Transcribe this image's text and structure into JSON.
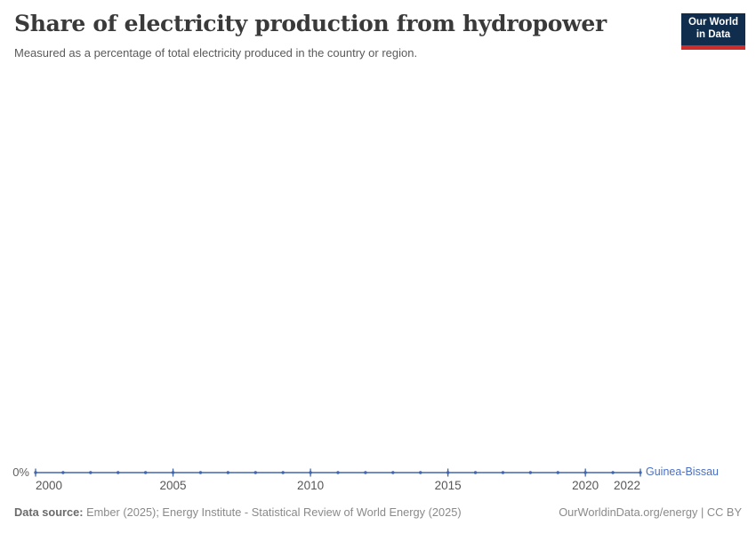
{
  "header": {
    "title": "Share of electricity production from hydropower",
    "subtitle": "Measured as a percentage of total electricity produced in the country or region.",
    "logo": {
      "line1": "Our World",
      "line2": "in Data",
      "bg_color": "#102D4E",
      "bar_color": "#CE2B2B"
    }
  },
  "chart_data": {
    "type": "line",
    "title": "Share of electricity production from hydropower",
    "subtitle": "Measured as a percentage of total electricity produced in the country or region.",
    "xlabel": "",
    "ylabel": "",
    "xlim": [
      2000,
      2022
    ],
    "ylim": [
      0,
      0
    ],
    "grid": false,
    "legend_position": "end-of-line",
    "x_ticks": [
      2000,
      2005,
      2010,
      2015,
      2020,
      2022
    ],
    "y_axis": {
      "zero_label": "0%",
      "tick_labels": [
        "0%"
      ]
    },
    "series": [
      {
        "name": "Guinea-Bissau",
        "color": "#4066AE",
        "label_color": "#4A70C4",
        "x": [
          2000,
          2001,
          2002,
          2003,
          2004,
          2005,
          2006,
          2007,
          2008,
          2009,
          2010,
          2011,
          2012,
          2013,
          2014,
          2015,
          2016,
          2017,
          2018,
          2019,
          2020,
          2021,
          2022
        ],
        "values": [
          0,
          0,
          0,
          0,
          0,
          0,
          0,
          0,
          0,
          0,
          0,
          0,
          0,
          0,
          0,
          0,
          0,
          0,
          0,
          0,
          0,
          0,
          0
        ]
      }
    ]
  },
  "footer": {
    "source_label": "Data source:",
    "source_text": " Ember (2025); Energy Institute - Statistical Review of World Energy (2025)",
    "right_text": "OurWorldinData.org/energy | CC BY"
  }
}
